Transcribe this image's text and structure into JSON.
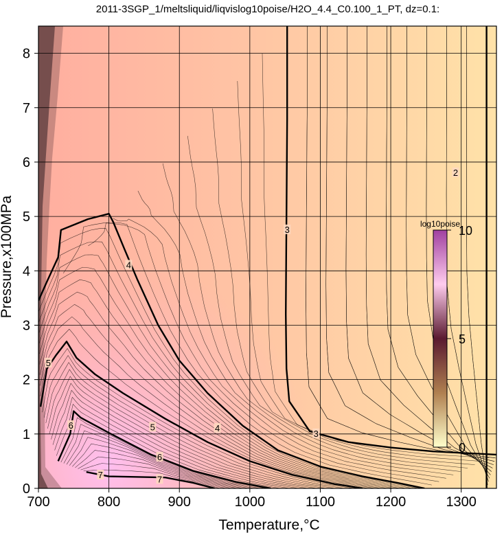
{
  "chart_data": {
    "type": "heatmap",
    "title": "2011-3SGP_1/meltsliquid/liqvislog10poise/H2O_4.4_C0.100_1_PT, dz=0.1:",
    "xlabel": "Temperature,°C",
    "ylabel": "Pressure,x100MPa",
    "xlim": [
      700,
      1350
    ],
    "ylim": [
      0,
      8.5
    ],
    "x_ticks": [
      700,
      800,
      900,
      1000,
      1100,
      1200,
      1300
    ],
    "y_ticks": [
      0,
      1,
      2,
      3,
      4,
      5,
      6,
      7,
      8
    ],
    "grid": true,
    "colorbar": {
      "label": "log10poise",
      "range": [
        0,
        10
      ],
      "ticks": [
        0,
        5,
        10
      ],
      "placement": "right-inside",
      "colors": [
        "#ffffcc",
        "#6a2a3a",
        "#ffccee",
        "#a040a0"
      ]
    },
    "background_colors": {
      "low_T": "#ffb4a6",
      "high_T": "#ffe0a8",
      "core": "#ffb8e6"
    },
    "contour_interval": 0.1,
    "contours": [
      {
        "level": 2,
        "label": "2",
        "points": [
          [
            1336,
            8.5
          ],
          [
            1336,
            0
          ]
        ]
      },
      {
        "level": 3,
        "label": "3",
        "points": [
          [
            1053,
            8.5
          ],
          [
            1053,
            6.8
          ],
          [
            1052,
            5.0
          ],
          [
            1051,
            3.2
          ],
          [
            1052,
            2.2
          ],
          [
            1056,
            1.6
          ],
          [
            1085,
            1.05
          ],
          [
            1140,
            0.85
          ],
          [
            1200,
            0.75
          ],
          [
            1260,
            0.68
          ],
          [
            1350,
            0.62
          ]
        ]
      },
      {
        "level": 4,
        "label": "4",
        "points": [
          [
            700,
            3.45
          ],
          [
            712,
            3.8
          ],
          [
            728,
            4.25
          ],
          [
            732,
            4.75
          ],
          [
            770,
            4.95
          ],
          [
            800,
            5.05
          ],
          [
            806,
            4.9
          ],
          [
            822,
            4.4
          ],
          [
            840,
            3.85
          ],
          [
            870,
            3.0
          ],
          [
            900,
            2.35
          ],
          [
            940,
            1.75
          ],
          [
            990,
            1.15
          ],
          [
            1040,
            0.7
          ],
          [
            1100,
            0.4
          ],
          [
            1160,
            0.22
          ],
          [
            1210,
            0.1
          ],
          [
            1248,
            0.0
          ]
        ]
      },
      {
        "level": 5,
        "label": "5",
        "points": [
          [
            703,
            1.5
          ],
          [
            712,
            2.2
          ],
          [
            725,
            2.45
          ],
          [
            740,
            2.7
          ],
          [
            754,
            2.4
          ],
          [
            780,
            2.1
          ],
          [
            820,
            1.75
          ],
          [
            880,
            1.28
          ],
          [
            940,
            0.85
          ],
          [
            1000,
            0.5
          ],
          [
            1060,
            0.25
          ],
          [
            1120,
            0.08
          ],
          [
            1160,
            0.0
          ]
        ]
      },
      {
        "level": 6,
        "label": "6",
        "points": [
          [
            728,
            0.5
          ],
          [
            745,
            1.0
          ],
          [
            750,
            1.42
          ],
          [
            760,
            1.3
          ],
          [
            800,
            1.02
          ],
          [
            860,
            0.62
          ],
          [
            920,
            0.32
          ],
          [
            980,
            0.12
          ],
          [
            1030,
            0.0
          ]
        ]
      },
      {
        "level": 7,
        "label": "7",
        "points": [
          [
            768,
            0.3
          ],
          [
            800,
            0.22
          ],
          [
            880,
            0.2
          ],
          [
            920,
            0.1
          ],
          [
            950,
            0.0
          ]
        ]
      }
    ],
    "inline_labels": [
      {
        "text": "2",
        "x": 1292,
        "y": 5.8
      },
      {
        "text": "3",
        "x": 1053,
        "y": 4.75
      },
      {
        "text": "3",
        "x": 1094,
        "y": 1.0
      },
      {
        "text": "4",
        "x": 828,
        "y": 4.1
      },
      {
        "text": "4",
        "x": 954,
        "y": 1.1
      },
      {
        "text": "5",
        "x": 714,
        "y": 2.3
      },
      {
        "text": "5",
        "x": 862,
        "y": 1.12
      },
      {
        "text": "6",
        "x": 746,
        "y": 1.15
      },
      {
        "text": "6",
        "x": 872,
        "y": 0.57
      },
      {
        "text": "7",
        "x": 788,
        "y": 0.24
      },
      {
        "text": "7",
        "x": 872,
        "y": 0.16
      }
    ]
  }
}
